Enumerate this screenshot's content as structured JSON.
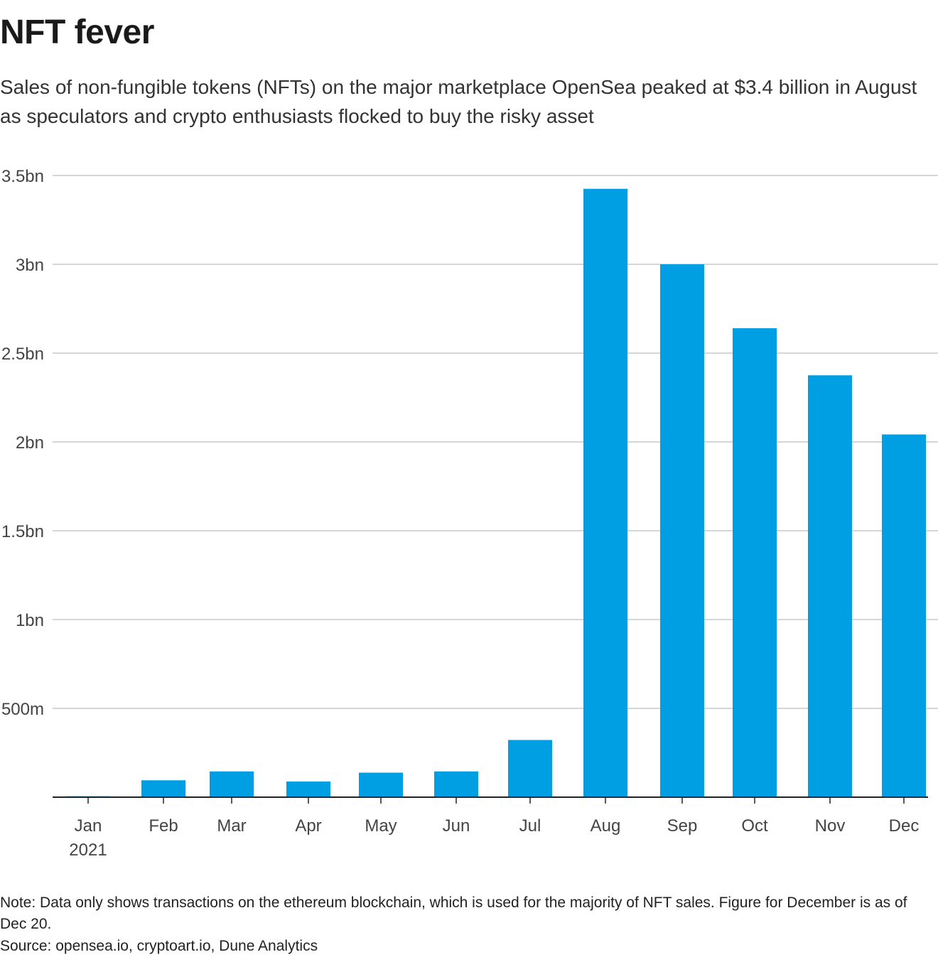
{
  "chart_data": {
    "type": "bar",
    "title": "NFT fever",
    "subtitle": "Sales of non-fungible tokens (NFTs) on the major marketplace OpenSea peaked at $3.4 billion in August as speculators and crypto enthusiasts flocked to buy the risky asset",
    "categories": [
      "Jan",
      "Feb",
      "Mar",
      "Apr",
      "May",
      "Jun",
      "Jul",
      "Aug",
      "Sep",
      "Oct",
      "Nov",
      "Dec"
    ],
    "category_sublabels": {
      "Jan": "2021"
    },
    "values": [
      5000000,
      95000000,
      145000000,
      88000000,
      138000000,
      145000000,
      322000000,
      3425000000,
      3000000000,
      2640000000,
      2375000000,
      2042000000
    ],
    "ylim": [
      0,
      3500000000
    ],
    "yticks": [
      500000000,
      1000000000,
      1500000000,
      2000000000,
      2500000000,
      3000000000,
      3500000000
    ],
    "ytick_labels": [
      "500m",
      "1bn",
      "1.5bn",
      "2bn",
      "2.5bn",
      "3bn",
      "3.5bn"
    ],
    "bar_color": "#009fe3",
    "grid": true,
    "xlabel": "",
    "ylabel": ""
  },
  "footer": {
    "note": "Note: Data only shows transactions on the ethereum blockchain, which is used for the majority of NFT sales. Figure for December is as of Dec 20.",
    "source": "Source: opensea.io, cryptoart.io, Dune Analytics"
  }
}
